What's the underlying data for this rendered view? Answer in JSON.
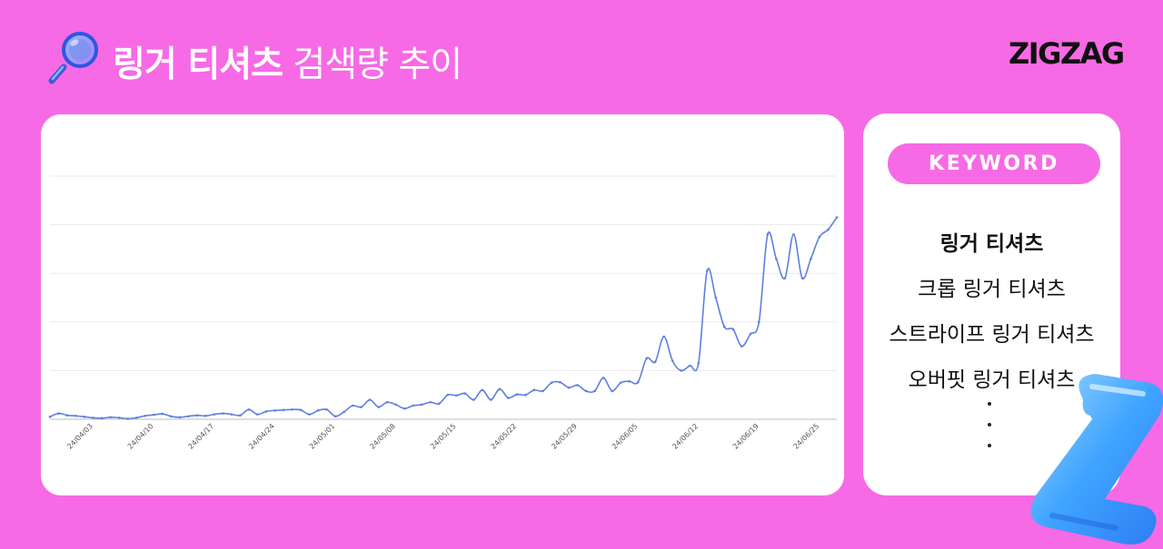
{
  "header": {
    "title_bold": "링거 티셔츠",
    "title_light": "검색량 추이",
    "icon": "magnifier-icon"
  },
  "brand": {
    "logo": "ZIGZAG"
  },
  "colors": {
    "background": "#f76ae5",
    "card": "#ffffff",
    "line": "#5f7fe0",
    "grid": "#eaeaea"
  },
  "keywords": {
    "badge": "KEYWORD",
    "items": [
      "링거 티셔츠",
      "크롭 링거 티셔츠",
      "스트라이프 링거 티셔츠",
      "오버핏 링거 티셔츠"
    ],
    "active_index": 0,
    "more_icon": "vertical-ellipsis-icon"
  },
  "chart_data": {
    "type": "line",
    "title": "",
    "xlabel": "",
    "ylabel": "",
    "ylim": [
      0,
      50
    ],
    "grid": true,
    "x_tick_labels": [
      "24/04/03",
      "24/04/10",
      "24/04/17",
      "24/04/24",
      "24/05/01",
      "24/05/08",
      "24/05/15",
      "24/05/22",
      "24/05/29",
      "24/06/05",
      "24/06/12",
      "24/06/19",
      "24/06/25"
    ],
    "series": [
      {
        "values": [
          0.5,
          1.2,
          0.8,
          0.7,
          0.5,
          0.3,
          0.2,
          0.4,
          0.3,
          0.1,
          0.3,
          0.7,
          0.9,
          1.1,
          0.6,
          0.4,
          0.6,
          0.8,
          0.7,
          1.0,
          1.2,
          1.0,
          0.8,
          2.0,
          1.0,
          1.6,
          1.8,
          1.9,
          2.0,
          1.9,
          1.0,
          1.8,
          2.0,
          0.6,
          1.5,
          2.8,
          2.5,
          4.0,
          2.5,
          3.5,
          3.0,
          2.2,
          2.8,
          3.0,
          3.5,
          3.2,
          5.0,
          4.9,
          5.3,
          4.0,
          6.0,
          4.0,
          6.2,
          4.4,
          5.1,
          5.0,
          6.0,
          5.8,
          7.5,
          7.6,
          6.5,
          7.0,
          5.8,
          5.8,
          8.5,
          5.8,
          7.5,
          7.8,
          7.6,
          12.5,
          11.8,
          17.0,
          12.0,
          10.0,
          11.0,
          11.5,
          30.5,
          25.0,
          19.0,
          18.5,
          15.0,
          17.5,
          20.0,
          38.0,
          33.0,
          29.0,
          38.0,
          29.0,
          33.0,
          37.5,
          39.0,
          41.5
        ]
      }
    ]
  }
}
